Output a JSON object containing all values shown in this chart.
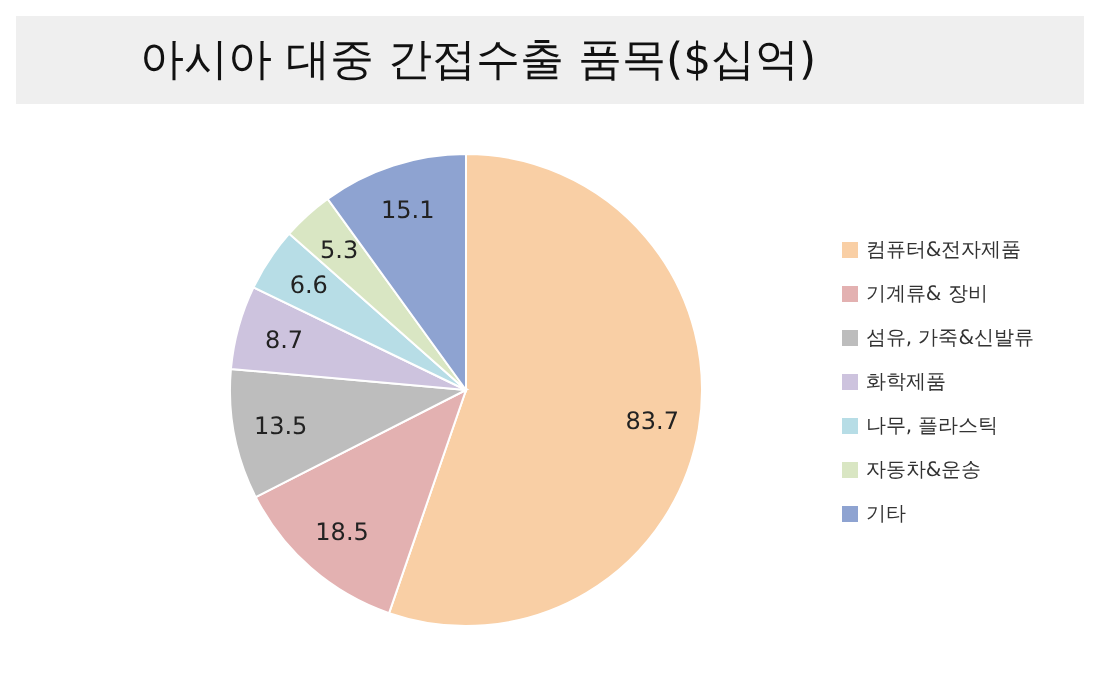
{
  "chart_data": {
    "type": "pie",
    "title": "아시아 대중 간접수출 품목($십억)",
    "categories": [
      "컴퓨터&전자제품",
      "기계류& 장비",
      "섬유, 가죽&신발류",
      "화학제품",
      "나무, 플라스틱",
      "자동차&운송",
      "기타"
    ],
    "values": [
      83.7,
      18.5,
      13.5,
      8.7,
      6.6,
      5.3,
      15.1
    ],
    "colors": [
      "#f9cfa5",
      "#e3b1b1",
      "#bdbdbd",
      "#cdc3de",
      "#b7dde6",
      "#d9e6c3",
      "#8ea3d1"
    ],
    "data_labels": true,
    "legend": "right"
  }
}
